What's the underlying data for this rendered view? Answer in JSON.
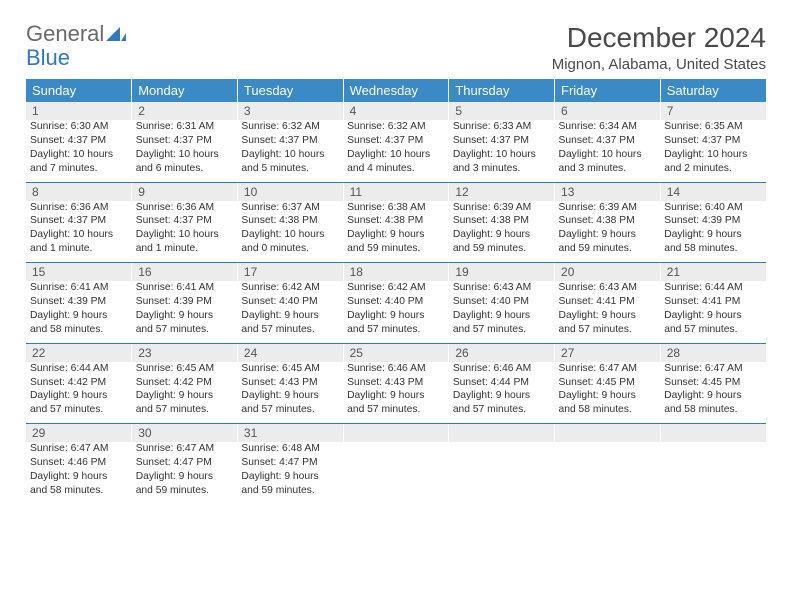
{
  "brand": {
    "part1": "General",
    "part2": "Blue"
  },
  "title": "December 2024",
  "location": "Mignon, Alabama, United States",
  "colors": {
    "header_bg": "#3a8ac8",
    "header_text": "#ffffff",
    "row_sep": "#2f78c4",
    "daynum_bg": "#ececec",
    "body_text": "#333333",
    "brand_gray": "#6a6a6a",
    "brand_blue": "#2f78c4"
  },
  "daysOfWeek": [
    "Sunday",
    "Monday",
    "Tuesday",
    "Wednesday",
    "Thursday",
    "Friday",
    "Saturday"
  ],
  "weeks": [
    [
      {
        "n": "1",
        "sr": "Sunrise: 6:30 AM",
        "ss": "Sunset: 4:37 PM",
        "dl1": "Daylight: 10 hours",
        "dl2": "and 7 minutes."
      },
      {
        "n": "2",
        "sr": "Sunrise: 6:31 AM",
        "ss": "Sunset: 4:37 PM",
        "dl1": "Daylight: 10 hours",
        "dl2": "and 6 minutes."
      },
      {
        "n": "3",
        "sr": "Sunrise: 6:32 AM",
        "ss": "Sunset: 4:37 PM",
        "dl1": "Daylight: 10 hours",
        "dl2": "and 5 minutes."
      },
      {
        "n": "4",
        "sr": "Sunrise: 6:32 AM",
        "ss": "Sunset: 4:37 PM",
        "dl1": "Daylight: 10 hours",
        "dl2": "and 4 minutes."
      },
      {
        "n": "5",
        "sr": "Sunrise: 6:33 AM",
        "ss": "Sunset: 4:37 PM",
        "dl1": "Daylight: 10 hours",
        "dl2": "and 3 minutes."
      },
      {
        "n": "6",
        "sr": "Sunrise: 6:34 AM",
        "ss": "Sunset: 4:37 PM",
        "dl1": "Daylight: 10 hours",
        "dl2": "and 3 minutes."
      },
      {
        "n": "7",
        "sr": "Sunrise: 6:35 AM",
        "ss": "Sunset: 4:37 PM",
        "dl1": "Daylight: 10 hours",
        "dl2": "and 2 minutes."
      }
    ],
    [
      {
        "n": "8",
        "sr": "Sunrise: 6:36 AM",
        "ss": "Sunset: 4:37 PM",
        "dl1": "Daylight: 10 hours",
        "dl2": "and 1 minute."
      },
      {
        "n": "9",
        "sr": "Sunrise: 6:36 AM",
        "ss": "Sunset: 4:37 PM",
        "dl1": "Daylight: 10 hours",
        "dl2": "and 1 minute."
      },
      {
        "n": "10",
        "sr": "Sunrise: 6:37 AM",
        "ss": "Sunset: 4:38 PM",
        "dl1": "Daylight: 10 hours",
        "dl2": "and 0 minutes."
      },
      {
        "n": "11",
        "sr": "Sunrise: 6:38 AM",
        "ss": "Sunset: 4:38 PM",
        "dl1": "Daylight: 9 hours",
        "dl2": "and 59 minutes."
      },
      {
        "n": "12",
        "sr": "Sunrise: 6:39 AM",
        "ss": "Sunset: 4:38 PM",
        "dl1": "Daylight: 9 hours",
        "dl2": "and 59 minutes."
      },
      {
        "n": "13",
        "sr": "Sunrise: 6:39 AM",
        "ss": "Sunset: 4:38 PM",
        "dl1": "Daylight: 9 hours",
        "dl2": "and 59 minutes."
      },
      {
        "n": "14",
        "sr": "Sunrise: 6:40 AM",
        "ss": "Sunset: 4:39 PM",
        "dl1": "Daylight: 9 hours",
        "dl2": "and 58 minutes."
      }
    ],
    [
      {
        "n": "15",
        "sr": "Sunrise: 6:41 AM",
        "ss": "Sunset: 4:39 PM",
        "dl1": "Daylight: 9 hours",
        "dl2": "and 58 minutes."
      },
      {
        "n": "16",
        "sr": "Sunrise: 6:41 AM",
        "ss": "Sunset: 4:39 PM",
        "dl1": "Daylight: 9 hours",
        "dl2": "and 57 minutes."
      },
      {
        "n": "17",
        "sr": "Sunrise: 6:42 AM",
        "ss": "Sunset: 4:40 PM",
        "dl1": "Daylight: 9 hours",
        "dl2": "and 57 minutes."
      },
      {
        "n": "18",
        "sr": "Sunrise: 6:42 AM",
        "ss": "Sunset: 4:40 PM",
        "dl1": "Daylight: 9 hours",
        "dl2": "and 57 minutes."
      },
      {
        "n": "19",
        "sr": "Sunrise: 6:43 AM",
        "ss": "Sunset: 4:40 PM",
        "dl1": "Daylight: 9 hours",
        "dl2": "and 57 minutes."
      },
      {
        "n": "20",
        "sr": "Sunrise: 6:43 AM",
        "ss": "Sunset: 4:41 PM",
        "dl1": "Daylight: 9 hours",
        "dl2": "and 57 minutes."
      },
      {
        "n": "21",
        "sr": "Sunrise: 6:44 AM",
        "ss": "Sunset: 4:41 PM",
        "dl1": "Daylight: 9 hours",
        "dl2": "and 57 minutes."
      }
    ],
    [
      {
        "n": "22",
        "sr": "Sunrise: 6:44 AM",
        "ss": "Sunset: 4:42 PM",
        "dl1": "Daylight: 9 hours",
        "dl2": "and 57 minutes."
      },
      {
        "n": "23",
        "sr": "Sunrise: 6:45 AM",
        "ss": "Sunset: 4:42 PM",
        "dl1": "Daylight: 9 hours",
        "dl2": "and 57 minutes."
      },
      {
        "n": "24",
        "sr": "Sunrise: 6:45 AM",
        "ss": "Sunset: 4:43 PM",
        "dl1": "Daylight: 9 hours",
        "dl2": "and 57 minutes."
      },
      {
        "n": "25",
        "sr": "Sunrise: 6:46 AM",
        "ss": "Sunset: 4:43 PM",
        "dl1": "Daylight: 9 hours",
        "dl2": "and 57 minutes."
      },
      {
        "n": "26",
        "sr": "Sunrise: 6:46 AM",
        "ss": "Sunset: 4:44 PM",
        "dl1": "Daylight: 9 hours",
        "dl2": "and 57 minutes."
      },
      {
        "n": "27",
        "sr": "Sunrise: 6:47 AM",
        "ss": "Sunset: 4:45 PM",
        "dl1": "Daylight: 9 hours",
        "dl2": "and 58 minutes."
      },
      {
        "n": "28",
        "sr": "Sunrise: 6:47 AM",
        "ss": "Sunset: 4:45 PM",
        "dl1": "Daylight: 9 hours",
        "dl2": "and 58 minutes."
      }
    ],
    [
      {
        "n": "29",
        "sr": "Sunrise: 6:47 AM",
        "ss": "Sunset: 4:46 PM",
        "dl1": "Daylight: 9 hours",
        "dl2": "and 58 minutes."
      },
      {
        "n": "30",
        "sr": "Sunrise: 6:47 AM",
        "ss": "Sunset: 4:47 PM",
        "dl1": "Daylight: 9 hours",
        "dl2": "and 59 minutes."
      },
      {
        "n": "31",
        "sr": "Sunrise: 6:48 AM",
        "ss": "Sunset: 4:47 PM",
        "dl1": "Daylight: 9 hours",
        "dl2": "and 59 minutes."
      },
      null,
      null,
      null,
      null
    ]
  ]
}
